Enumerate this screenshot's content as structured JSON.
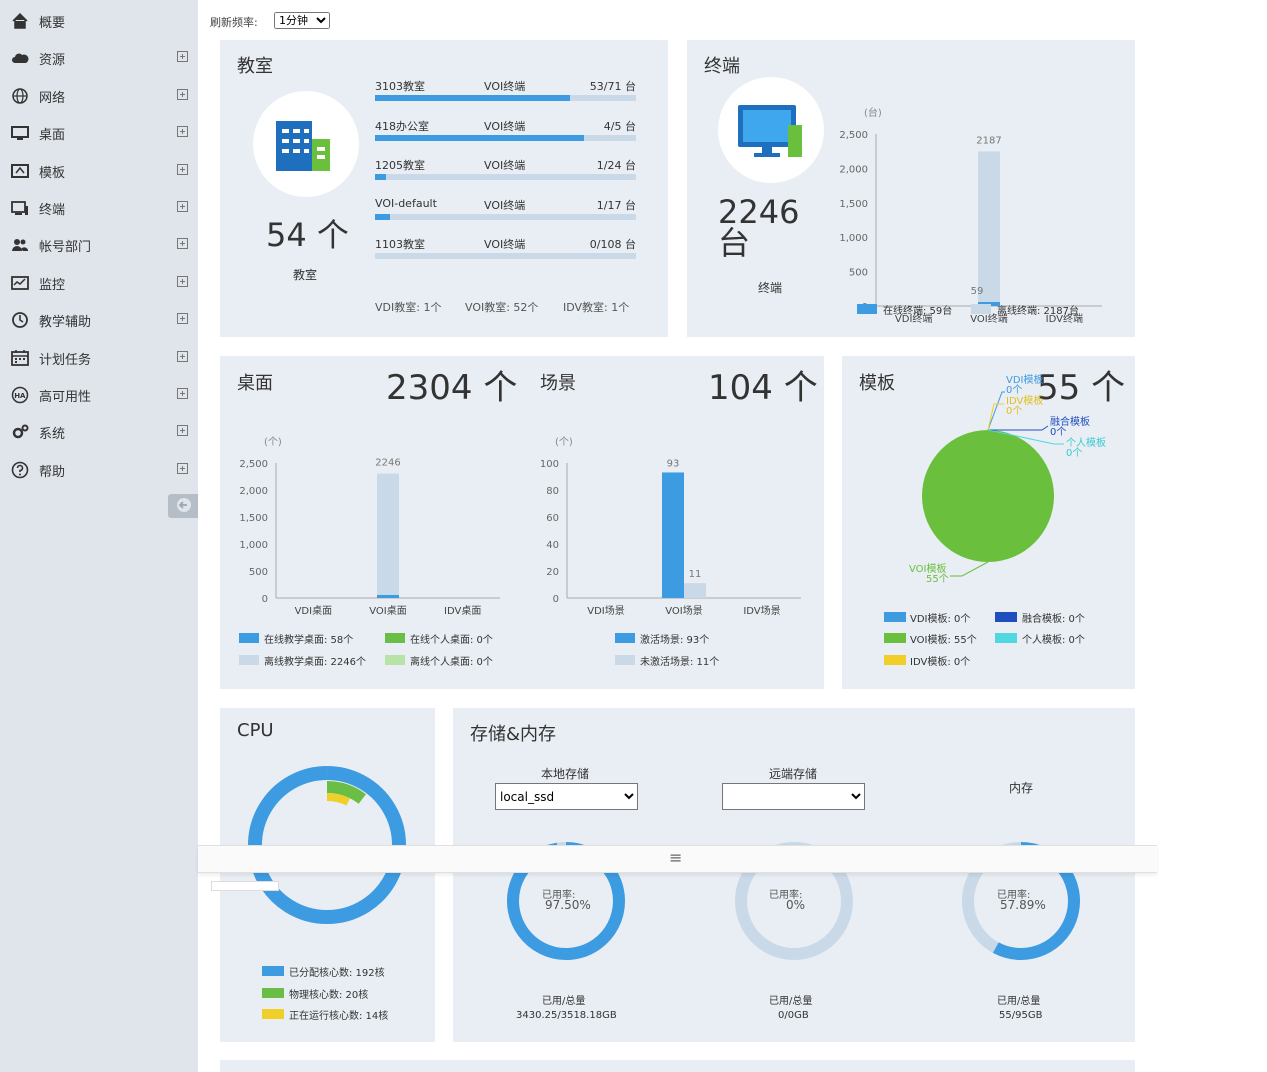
{
  "sidebar": {
    "items": [
      {
        "label": "概要",
        "icon": "home-icon",
        "expandable": false
      },
      {
        "label": "资源",
        "icon": "cloud-icon",
        "expandable": true
      },
      {
        "label": "网络",
        "icon": "globe-icon",
        "expandable": true
      },
      {
        "label": "桌面",
        "icon": "monitor-icon",
        "expandable": true
      },
      {
        "label": "模板",
        "icon": "template-icon",
        "expandable": true
      },
      {
        "label": "终端",
        "icon": "terminal-icon",
        "expandable": true
      },
      {
        "label": "帐号部门",
        "icon": "users-icon",
        "expandable": true
      },
      {
        "label": "监控",
        "icon": "monitor-chart-icon",
        "expandable": true
      },
      {
        "label": "教学辅助",
        "icon": "clock-icon",
        "expandable": true
      },
      {
        "label": "计划任务",
        "icon": "calendar-icon",
        "expandable": true
      },
      {
        "label": "高可用性",
        "icon": "ha-icon",
        "expandable": true
      },
      {
        "label": "系统",
        "icon": "gears-icon",
        "expandable": true
      },
      {
        "label": "帮助",
        "icon": "help-icon",
        "expandable": true
      }
    ]
  },
  "refresh": {
    "label": "刷新频率:",
    "value": "1分钟"
  },
  "classroom": {
    "title": "教室",
    "count": "54 个",
    "caption": "教室",
    "rows": [
      {
        "name": "3103教室",
        "type": "VOI终端",
        "ratio": "53/71 台",
        "fill": 0.746
      },
      {
        "name": "418办公室",
        "type": "VOI终端",
        "ratio": "4/5 台",
        "fill": 0.8
      },
      {
        "name": "1205教室",
        "type": "VOI终端",
        "ratio": "1/24 台",
        "fill": 0.042
      },
      {
        "name": "VOI-default",
        "type": "VOI终端",
        "ratio": "1/17 台",
        "fill": 0.059
      },
      {
        "name": "1103教室",
        "type": "VOI终端",
        "ratio": "0/108 台",
        "fill": 0
      }
    ],
    "summary": [
      "VDI教室: 1个",
      "VOI教室: 52个",
      "IDV教室: 1个"
    ],
    "colors": {
      "fill": "#3d9be1",
      "track": "#c9d9e8"
    }
  },
  "terminal": {
    "title": "终端",
    "count": "2246 台",
    "caption": "终端",
    "legend": [
      "在线终端: 59台",
      "离线终端: 2187台"
    ]
  },
  "desktop": {
    "title": "桌面",
    "count": "2304 个",
    "legend": [
      "在线教学桌面: 58个",
      "在线个人桌面: 0个",
      "离线教学桌面: 2246个",
      "离线个人桌面: 0个"
    ]
  },
  "scene": {
    "title": "场景",
    "count": "104 个",
    "legend": [
      "激活场景: 93个",
      "未激活场景: 11个"
    ]
  },
  "template": {
    "title": "模板",
    "count": "55 个",
    "legend": [
      "VDI模板: 0个",
      "融合模板: 0个",
      "VOI模板: 55个",
      "个人模板: 0个",
      "IDV模板: 0个"
    ],
    "pie_labels": [
      "VDI模板",
      "0个",
      "IDV模板",
      "0个",
      "融合模板",
      "0个",
      "个人模板",
      "0个",
      "VOI模板",
      "55个"
    ]
  },
  "cpu": {
    "title": "CPU",
    "legend": [
      "已分配核心数: 192核",
      "物理核心数: 20核",
      "正在运行核心数: 14核"
    ]
  },
  "storage": {
    "title": "存储&内存",
    "local_label": "本地存储",
    "local_value": "local_ssd",
    "remote_label": "远端存储",
    "remote_value": "",
    "memory_label": "内存",
    "used_label": "已用率:",
    "total_label": "已用/总量",
    "local_pct": "97.50%",
    "local_total": "3430.25/3518.18GB",
    "remote_pct": "0%",
    "remote_total": "0/0GB",
    "memory_pct": "57.89%",
    "memory_total": "55/95GB"
  },
  "drag_handle": "≡",
  "chart_data": [
    {
      "type": "bar",
      "id": "terminal",
      "unit": "(台)",
      "categories": [
        "VDI终端",
        "VOI终端",
        "IDV终端"
      ],
      "series": [
        {
          "name": "在线终端",
          "values": [
            0,
            59,
            0
          ],
          "color": "#3d9be1"
        },
        {
          "name": "离线终端",
          "values": [
            0,
            2187,
            0
          ],
          "color": "#c9d9e8"
        }
      ],
      "ylim": [
        0,
        2500
      ],
      "yticks": [
        "0",
        "500",
        "1,000",
        "1,500",
        "2,000",
        "2,500"
      ],
      "labels": [
        "59",
        "2187"
      ]
    },
    {
      "type": "bar",
      "id": "desktop",
      "unit": "(个)",
      "categories": [
        "VDI桌面",
        "VOI桌面",
        "IDV桌面"
      ],
      "series": [
        {
          "name": "在线教学桌面",
          "values": [
            0,
            58,
            0
          ],
          "color": "#3d9be1"
        },
        {
          "name": "离线教学桌面",
          "values": [
            0,
            2246,
            0
          ],
          "color": "#c9d9e8"
        },
        {
          "name": "在线个人桌面",
          "values": [
            0,
            0,
            0
          ],
          "color": "#6abe45"
        },
        {
          "name": "离线个人桌面",
          "values": [
            0,
            0,
            0
          ],
          "color": "#b7e4a6"
        }
      ],
      "ylim": [
        0,
        2500
      ],
      "yticks": [
        "0",
        "500",
        "1,000",
        "1,500",
        "2,000",
        "2,500"
      ],
      "labels": [
        "2246"
      ]
    },
    {
      "type": "bar",
      "id": "scene",
      "unit": "(个)",
      "categories": [
        "VDI场景",
        "VOI场景",
        "IDV场景"
      ],
      "series": [
        {
          "name": "激活场景",
          "values": [
            0,
            93,
            0
          ],
          "color": "#3d9be1"
        },
        {
          "name": "未激活场景",
          "values": [
            0,
            11,
            0
          ],
          "color": "#c9d9e8"
        }
      ],
      "ylim": [
        0,
        100
      ],
      "yticks": [
        "0",
        "20",
        "40",
        "60",
        "80",
        "100"
      ],
      "labels": [
        "93",
        "11"
      ]
    },
    {
      "type": "pie",
      "id": "template",
      "slices": [
        {
          "name": "VDI模板",
          "value": 0
        },
        {
          "name": "IDV模板",
          "value": 0
        },
        {
          "name": "融合模板",
          "value": 0
        },
        {
          "name": "个人模板",
          "value": 0
        },
        {
          "name": "VOI模板",
          "value": 55
        }
      ],
      "colors": {
        "VDI模板": "#3d9be1",
        "IDV模板": "#f0d028",
        "融合模板": "#1f4fbf",
        "个人模板": "#4fd8e0",
        "VOI模板": "#6abf3c"
      }
    },
    {
      "type": "pie",
      "id": "cpu",
      "slices": [
        {
          "name": "已分配核心数",
          "value": 192
        },
        {
          "name": "物理核心数",
          "value": 20
        },
        {
          "name": "正在运行核心数",
          "value": 14
        }
      ],
      "colors": {
        "已分配核心数": "#3d9be1",
        "物理核心数": "#6abe45",
        "正在运行核心数": "#f0d028"
      }
    },
    {
      "type": "pie",
      "id": "local-storage",
      "used_pct": 97.5
    },
    {
      "type": "pie",
      "id": "remote-storage",
      "used_pct": 0
    },
    {
      "type": "pie",
      "id": "memory",
      "used_pct": 57.89
    }
  ]
}
